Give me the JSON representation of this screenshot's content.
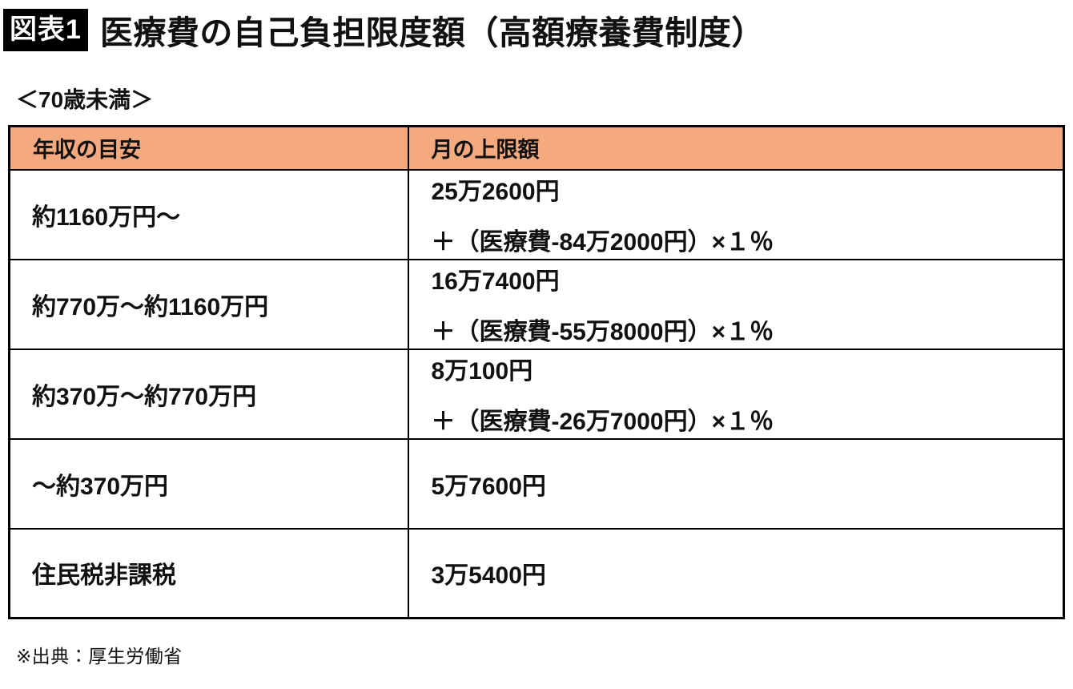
{
  "figure": {
    "tag": "図表1",
    "title": "医療費の自己負担限度額（高額療養費制度）",
    "subtitle": "＜70歳未満＞",
    "source": "※出典：厚生労働省"
  },
  "table": {
    "headers": {
      "income": "年収の目安",
      "limit": "月の上限額"
    },
    "rows": [
      {
        "income": "約1160万円～",
        "limit_amount": "25万2600円",
        "limit_formula": "＋（医療費-84万2000円）×１％"
      },
      {
        "income": "約770万～約1160万円",
        "limit_amount": "16万7400円",
        "limit_formula": "＋（医療費-55万8000円）×１％"
      },
      {
        "income": "約370万～約770万円",
        "limit_amount": "8万100円",
        "limit_formula": "＋（医療費-26万7000円）×１％"
      },
      {
        "income": "～約370万円",
        "limit_amount": "5万7600円",
        "limit_formula": ""
      },
      {
        "income": "住民税非課税",
        "limit_amount": "3万5400円",
        "limit_formula": ""
      }
    ]
  },
  "colors": {
    "header_bg": "#F4A97E",
    "border": "#000000",
    "tag_bg": "#000000",
    "tag_text": "#FFFFFF"
  }
}
